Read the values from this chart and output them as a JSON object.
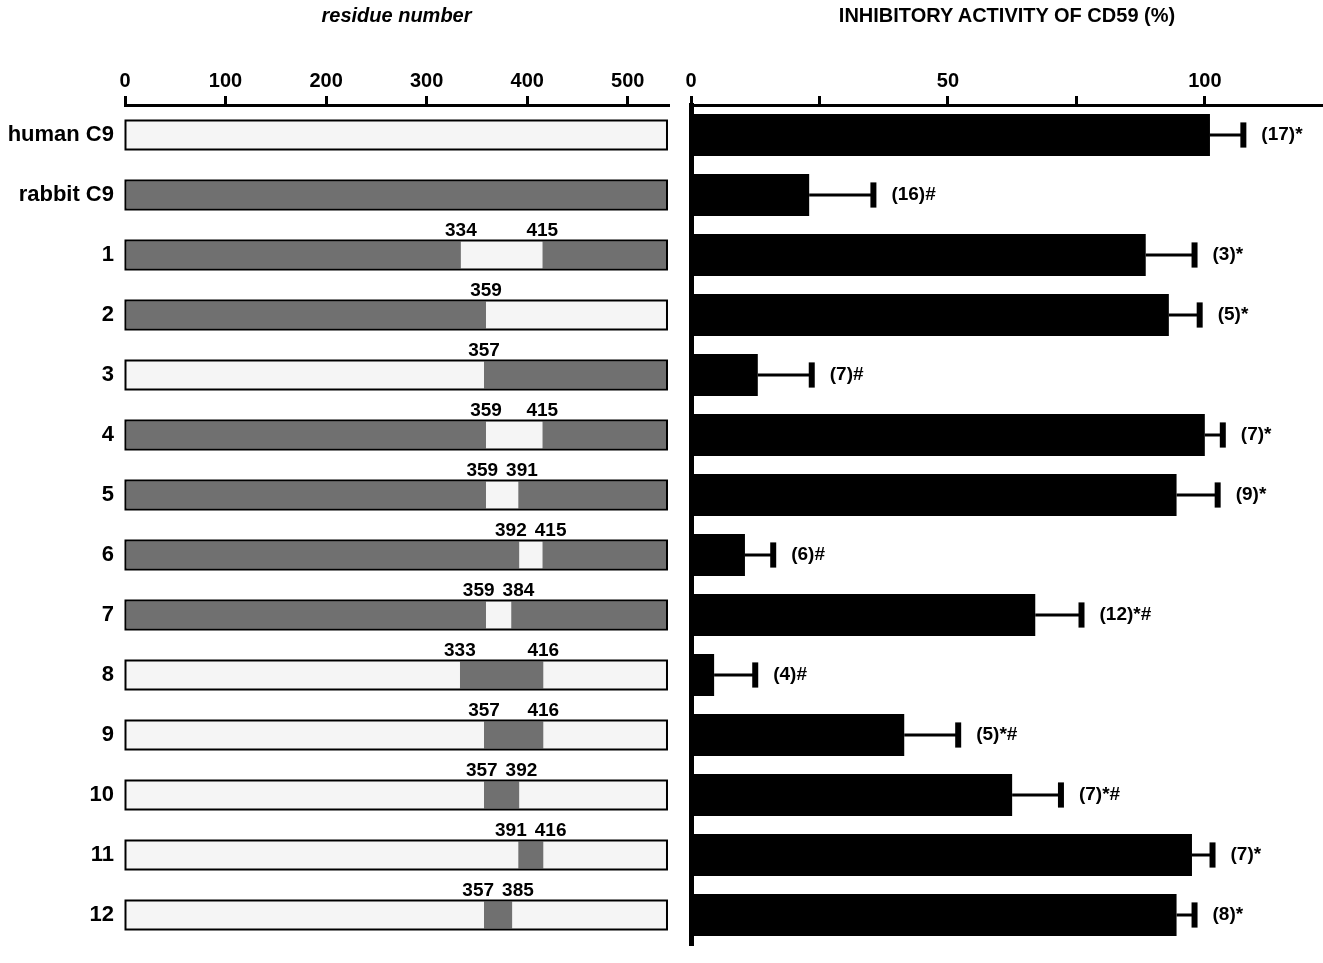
{
  "chart_data": [
    {
      "type": "bar",
      "orientation": "horizontal",
      "stacked": true,
      "xlabel": "residue number",
      "xlim": [
        0,
        540
      ],
      "xticks": [
        0,
        100,
        200,
        300,
        400,
        500
      ],
      "categories": [
        "human C9",
        "rabbit C9",
        "1",
        "2",
        "3",
        "4",
        "5",
        "6",
        "7",
        "8",
        "9",
        "10",
        "11",
        "12"
      ],
      "series": [
        {
          "values": [
            538,
            538,
            334,
            359,
            357,
            359,
            359,
            392,
            359,
            333,
            357,
            357,
            391,
            357
          ],
          "colors": [
            "#f5f5f5",
            "#707070",
            "#707070",
            "#707070",
            "#f5f5f5",
            "#707070",
            "#707070",
            "#707070",
            "#707070",
            "#f5f5f5",
            "#f5f5f5",
            "#f5f5f5",
            "#f5f5f5",
            "#f5f5f5"
          ]
        },
        {
          "values": [
            null,
            null,
            81,
            179,
            181,
            56,
            32,
            23,
            25,
            83,
            59,
            35,
            25,
            28
          ],
          "colors": [
            "#f5f5f5",
            "#f5f5f5",
            "#f5f5f5",
            "#f5f5f5",
            "#707070",
            "#f5f5f5",
            "#f5f5f5",
            "#f5f5f5",
            "#f5f5f5",
            "#707070",
            "#707070",
            "#707070",
            "#707070",
            "#707070"
          ]
        },
        {
          "values": [
            null,
            null,
            123,
            null,
            null,
            123,
            147,
            123,
            154,
            122,
            122,
            146,
            122,
            153
          ],
          "colors": [
            "#707070",
            "#707070",
            "#707070",
            "#707070",
            "#707070",
            "#707070",
            "#707070",
            "#707070",
            "#707070",
            "#f5f5f5",
            "#f5f5f5",
            "#f5f5f5",
            "#f5f5f5",
            "#f5f5f5"
          ]
        }
      ],
      "annotations": [
        {
          "text": "334",
          "x": 334,
          "y": "1"
        },
        {
          "text": "415",
          "x": 415,
          "y": "1"
        },
        {
          "text": "359",
          "x": 359,
          "y": "2"
        },
        {
          "text": "357",
          "x": 357,
          "y": "3"
        },
        {
          "text": "359",
          "x": 359,
          "y": "4"
        },
        {
          "text": "415",
          "x": 415,
          "y": "4"
        },
        {
          "text": "359",
          "x": 359,
          "y": "5"
        },
        {
          "text": "391",
          "x": 391,
          "y": "5"
        },
        {
          "text": "392",
          "x": 392,
          "y": "6"
        },
        {
          "text": "415",
          "x": 415,
          "y": "6"
        },
        {
          "text": "359",
          "x": 359,
          "y": "7"
        },
        {
          "text": "384",
          "x": 384,
          "y": "7"
        },
        {
          "text": "333",
          "x": 333,
          "y": "8"
        },
        {
          "text": "416",
          "x": 416,
          "y": "8"
        },
        {
          "text": "357",
          "x": 357,
          "y": "9"
        },
        {
          "text": "416",
          "x": 416,
          "y": "9"
        },
        {
          "text": "357",
          "x": 357,
          "y": "10"
        },
        {
          "text": "392",
          "x": 392,
          "y": "10"
        },
        {
          "text": "391",
          "x": 391,
          "y": "11"
        },
        {
          "text": "416",
          "x": 416,
          "y": "11"
        },
        {
          "text": "357",
          "x": 357,
          "y": "12"
        },
        {
          "text": "385",
          "x": 385,
          "y": "12"
        }
      ]
    },
    {
      "type": "bar",
      "orientation": "horizontal",
      "xlabel": "INHIBITORY ACTIVITY OF CD59 (%)",
      "xlim": [
        0,
        123
      ],
      "xticks": [
        0,
        {
          "value": 25,
          "label": null
        },
        50,
        {
          "value": 75,
          "label": null
        },
        100
      ],
      "tick_labels": "x",
      "categories": [
        "human C9",
        "rabbit C9",
        "1",
        "2",
        "3",
        "4",
        "5",
        "6",
        "7",
        "8",
        "9",
        "10",
        "11",
        "12"
      ],
      "color": "#000000",
      "values": [
        101,
        23,
        88.5,
        93,
        13,
        100,
        94.5,
        10.5,
        67,
        4.5,
        41.5,
        62.5,
        97.5,
        94.5
      ],
      "errors": [
        6.5,
        12.5,
        9.5,
        6,
        10.5,
        3.5,
        8,
        5.5,
        9,
        8,
        10.5,
        9.5,
        4,
        3.5
      ],
      "annotations": [
        {
          "text": "(17)*",
          "x": 107.5,
          "y": "human C9"
        },
        {
          "text": "(16)#",
          "x": 35.5,
          "y": "rabbit C9"
        },
        {
          "text": "(3)*",
          "x": 98,
          "y": "1"
        },
        {
          "text": "(5)*",
          "x": 99,
          "y": "2"
        },
        {
          "text": "(7)#",
          "x": 23.5,
          "y": "3"
        },
        {
          "text": "(7)*",
          "x": 103.5,
          "y": "4"
        },
        {
          "text": "(9)*",
          "x": 102.5,
          "y": "5"
        },
        {
          "text": "(6)#",
          "x": 16,
          "y": "6"
        },
        {
          "text": "(12)*#",
          "x": 76,
          "y": "7"
        },
        {
          "text": "(4)#",
          "x": 12.5,
          "y": "8"
        },
        {
          "text": "(5)*#",
          "x": 52,
          "y": "9"
        },
        {
          "text": "(7)*#",
          "x": 72,
          "y": "10"
        },
        {
          "text": "(7)*",
          "x": 101.5,
          "y": "11"
        },
        {
          "text": "(8)*",
          "x": 98,
          "y": "12"
        }
      ]
    }
  ]
}
